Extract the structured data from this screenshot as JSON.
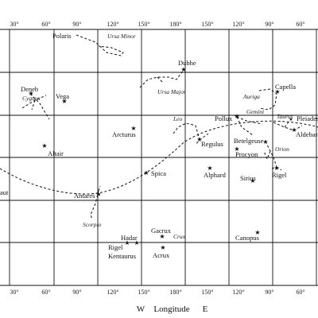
{
  "top_ticks": [
    "30°",
    "60°",
    "90°",
    "120°",
    "150°",
    "180°",
    "150°",
    "120°",
    "90°",
    "60°"
  ],
  "bottom_ticks": [
    "30°",
    "60°",
    "90°",
    "120°",
    "150°",
    "180°",
    "150°",
    "120°",
    "90°",
    "60°"
  ],
  "axis_caption": {
    "left": "W",
    "center": "Longitude",
    "right": "E"
  },
  "stars": [
    "Polaris",
    "Dubhe",
    "Deneb",
    "Vega",
    "Capella",
    "Pollux",
    "Pleiades",
    "Arcturus",
    "Regulus",
    "Betelgeuse",
    "Aldebaran",
    "Altair",
    "Procyon",
    "Alphard",
    "Spica",
    "Sirius",
    "Rigel",
    "Antares",
    "aut",
    "Gacrux",
    "Hadar",
    "Rigel",
    "Kentaurus",
    "Acrux",
    "Canopus"
  ],
  "constellations": [
    "Ursa Minor",
    "Ursa Major",
    "Cygnus",
    "Leo",
    "Auriga",
    "Gemini",
    "Taurus",
    "Orion",
    "Scorpio",
    "Crux"
  ]
}
